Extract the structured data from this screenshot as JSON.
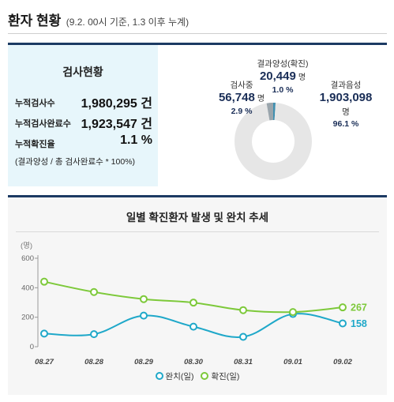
{
  "header": {
    "title": "환자 현황",
    "subtitle": "(9.2. 00시 기준, 1.3 이후 누계)"
  },
  "test_summary": {
    "title": "검사현황",
    "rows": [
      {
        "label": "누적검사수",
        "value": "1,980,295 건"
      },
      {
        "label": "누적검사완료수",
        "value": "1,923,547 건"
      },
      {
        "label": "누적확진율",
        "value": "1.1 %"
      }
    ],
    "note": "(결과양성 / 총 검사완료수 * 100%)"
  },
  "donut": {
    "testing": {
      "label": "검사중",
      "count": "56,748",
      "unit": "명",
      "percent": "2.9 %",
      "share": 2.9
    },
    "positive": {
      "label": "결과양성(확진)",
      "count": "20,449",
      "unit": "명",
      "percent": "1.0 %",
      "share": 1.0
    },
    "negative": {
      "label": "결과음성",
      "count": "1,903,098",
      "unit": "명",
      "percent": "96.1 %",
      "share": 96.1
    },
    "colors": {
      "testing": "#9aa5ac",
      "positive": "#3f8fb0",
      "negative": "#e6e6e6"
    }
  },
  "chart_title": "일별 확진환자 발생 및 완치 추세",
  "chart_data": {
    "type": "line",
    "ylabel": "(명)",
    "ylim": [
      0,
      600
    ],
    "yticks": [
      "600",
      "400",
      "200",
      "0"
    ],
    "categories": [
      "08.27",
      "08.28",
      "08.29",
      "08.30",
      "08.31",
      "09.01",
      "09.02"
    ],
    "series": [
      {
        "name": "완치(일)",
        "values": [
          89,
          85,
          211,
          136,
          67,
          222,
          158
        ],
        "color": "#1fa8c9",
        "end_label": "158"
      },
      {
        "name": "확진(일)",
        "values": [
          441,
          371,
          323,
          299,
          248,
          235,
          267
        ],
        "color": "#7dc93a",
        "end_label": "267"
      }
    ]
  }
}
